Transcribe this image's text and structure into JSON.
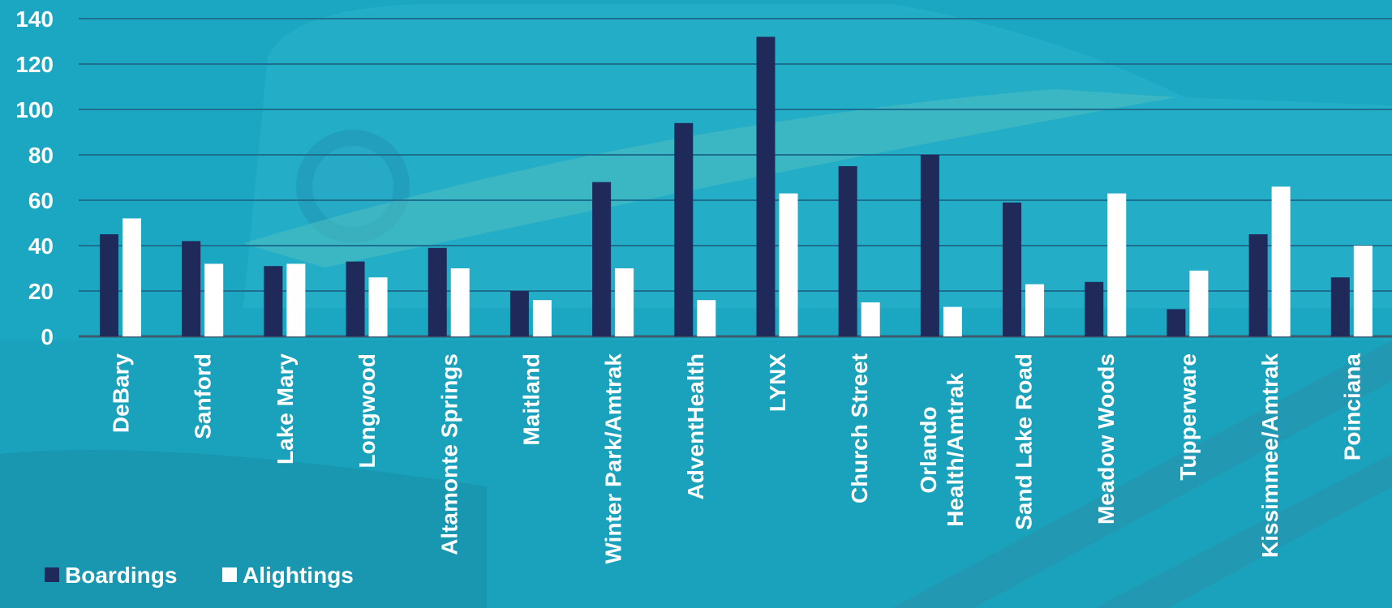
{
  "chart_data": {
    "type": "bar",
    "title": "",
    "xlabel": "",
    "ylabel": "",
    "ylim": [
      0,
      140
    ],
    "yticks": [
      0,
      20,
      40,
      60,
      80,
      100,
      120,
      140
    ],
    "grid": true,
    "legend_position": "bottom-left",
    "categories": [
      [
        "DeBary"
      ],
      [
        "Sanford"
      ],
      [
        "Lake Mary"
      ],
      [
        "Longwood"
      ],
      [
        "Altamonte Springs"
      ],
      [
        "Maitland"
      ],
      [
        "Winter Park/Amtrak"
      ],
      [
        "AdventHealth"
      ],
      [
        "LYNX"
      ],
      [
        "Church Street"
      ],
      [
        "Orlando",
        "Health/Amtrak"
      ],
      [
        "Sand Lake Road"
      ],
      [
        "Meadow Woods"
      ],
      [
        "Tupperware"
      ],
      [
        "Kissimmee/Amtrak"
      ],
      [
        "Poinciana"
      ]
    ],
    "series": [
      {
        "name": "Boardings",
        "color": "#1f2a5a",
        "values": [
          45,
          42,
          31,
          33,
          39,
          20,
          68,
          94,
          132,
          75,
          80,
          59,
          24,
          12,
          45,
          26
        ]
      },
      {
        "name": "Alightings",
        "color": "#ffffff",
        "values": [
          52,
          32,
          32,
          26,
          30,
          16,
          30,
          16,
          63,
          15,
          13,
          23,
          63,
          29,
          66,
          40
        ]
      }
    ],
    "colors": {
      "background": "#1ba7c2",
      "gridline": "#1d6f8f",
      "axis": "#3d5a6e",
      "text": "#ffffff"
    }
  }
}
